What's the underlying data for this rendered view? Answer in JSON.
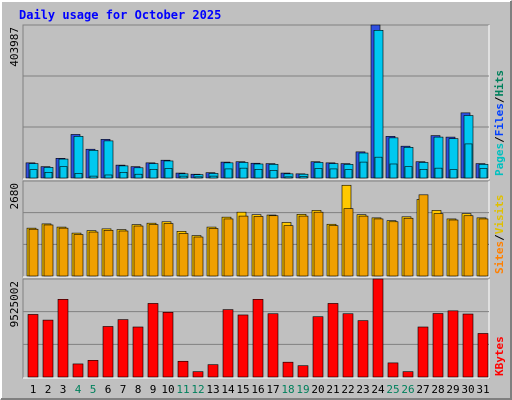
{
  "chart_data": {
    "type": "bar",
    "title": "Daily usage for October 2025",
    "categories": [
      "1",
      "2",
      "3",
      "4",
      "5",
      "6",
      "7",
      "8",
      "9",
      "10",
      "11",
      "12",
      "13",
      "14",
      "15",
      "16",
      "17",
      "18",
      "19",
      "20",
      "21",
      "22",
      "23",
      "24",
      "25",
      "26",
      "27",
      "28",
      "29",
      "30",
      "31"
    ],
    "weekend_days": [
      "4",
      "5",
      "11",
      "12",
      "18",
      "19",
      "25",
      "26"
    ],
    "panels": [
      {
        "id": "pages-files-hits",
        "ymax_label": "403987",
        "ymax": 403987,
        "legend": [
          "Pages",
          "/",
          "Files",
          "/",
          "Hits"
        ],
        "series": [
          {
            "name": "Hits",
            "color": "#3050e0",
            "values": [
              40000,
              30000,
              52000,
              115000,
              76000,
              102000,
              34000,
              30000,
              40000,
              47000,
              13000,
              10000,
              14000,
              42000,
              43000,
              39000,
              38000,
              13000,
              11000,
              43000,
              40000,
              38000,
              69000,
              403987,
              110000,
              84000,
              43000,
              112000,
              108000,
              172000,
              38000
            ]
          },
          {
            "name": "Files",
            "color": "#00c8f0",
            "values": [
              38000,
              28000,
              50000,
              110000,
              73000,
              98000,
              32000,
              27000,
              38000,
              45000,
              11000,
              9000,
              12000,
              40000,
              41000,
              37000,
              36000,
              11000,
              10000,
              41000,
              38000,
              36000,
              66000,
              390000,
              106000,
              81000,
              41000,
              108000,
              104000,
              165000,
              36000
            ]
          },
          {
            "name": "Pages",
            "color": "#00c8f0",
            "values": [
              22000,
              15000,
              30000,
              12000,
              5000,
              8000,
              15000,
              10000,
              23000,
              25000,
              5000,
              3000,
              5000,
              24000,
              26000,
              23000,
              20000,
              3000,
              4000,
              25000,
              24000,
              22000,
              42000,
              55000,
              37000,
              30000,
              23000,
              26000,
              22000,
              90000,
              25000
            ]
          }
        ]
      },
      {
        "id": "visits-sites",
        "ymax_label": "2680",
        "ymax": 2680,
        "legend": [
          "Sites",
          "/",
          "Visits"
        ],
        "series": [
          {
            "name": "Visits",
            "color": "#ffc800",
            "values": [
              1350,
              1470,
              1380,
              1210,
              1280,
              1330,
              1310,
              1450,
              1490,
              1530,
              1260,
              1140,
              1380,
              1660,
              1800,
              1730,
              1720,
              1510,
              1740,
              1850,
              1460,
              2560,
              1730,
              1640,
              1560,
              1670,
              2160,
              1850,
              1610,
              1760,
              1640
            ]
          },
          {
            "name": "Sites",
            "color": "#f0a000",
            "values": [
              1320,
              1440,
              1350,
              1170,
              1240,
              1290,
              1270,
              1410,
              1450,
              1480,
              1200,
              1100,
              1340,
              1610,
              1690,
              1680,
              1700,
              1420,
              1690,
              1800,
              1420,
              1900,
              1690,
              1610,
              1530,
              1630,
              2290,
              1760,
              1580,
              1700,
              1610
            ]
          }
        ]
      },
      {
        "id": "kbytes",
        "ymax_label": "9525002",
        "ymax": 9525002,
        "legend": [
          "KBytes"
        ],
        "series": [
          {
            "name": "KBytes",
            "color": "#ff0000",
            "values": [
              6080000,
              5530000,
              7550000,
              1270000,
              1620000,
              4910000,
              5580000,
              4860000,
              7150000,
              6290000,
              1530000,
              520000,
              1200000,
              6550000,
              6030000,
              7550000,
              6150000,
              1440000,
              1100000,
              5860000,
              7150000,
              6150000,
              5480000,
              9525002,
              1370000,
              520000,
              4860000,
              6170000,
              6430000,
              6120000,
              4230000
            ]
          }
        ]
      }
    ],
    "colors": {
      "background": "#c0c0c0",
      "frame_light": "#ffffff",
      "frame_dark": "#808080",
      "gridline": "#808080",
      "title": "#0000ff",
      "axis_label": "#000000",
      "weekend_label": "#00805c",
      "pages": "#00c0c0",
      "files": "#0040ff",
      "hits": "#00805c",
      "sites": "#ff8000",
      "visits": "#e0c000",
      "kbytes": "#ff0000",
      "slash": "#000000"
    }
  }
}
